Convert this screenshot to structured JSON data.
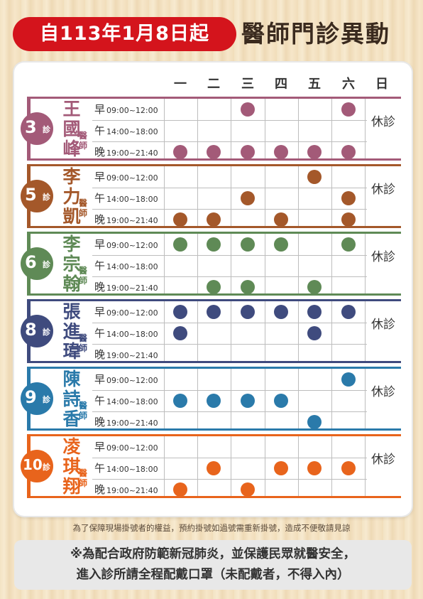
{
  "header": {
    "date_label": "自113年1月8日起",
    "title": "醫師門診異動"
  },
  "days": [
    "一",
    "二",
    "三",
    "四",
    "五",
    "六",
    "日"
  ],
  "slot_labels": {
    "morning": {
      "label": "早",
      "time": "09:00~12:00"
    },
    "afternoon": {
      "label": "午",
      "time": "14:00~18:00"
    },
    "evening": {
      "label": "晚",
      "time": "19:00~21:40"
    }
  },
  "doctor_title": "醫師",
  "room_suffix": "診",
  "rest_label": "休診",
  "doctors": [
    {
      "room": "3",
      "name": "王國峰",
      "color": "#a35a78",
      "schedule": {
        "morning": [
          0,
          0,
          1,
          0,
          0,
          1
        ],
        "afternoon": [
          0,
          0,
          0,
          0,
          0,
          0
        ],
        "evening": [
          1,
          1,
          1,
          1,
          1,
          1
        ]
      }
    },
    {
      "room": "5",
      "name": "李力凱",
      "color": "#a4582a",
      "schedule": {
        "morning": [
          0,
          0,
          0,
          0,
          1,
          0
        ],
        "afternoon": [
          0,
          0,
          1,
          0,
          0,
          1
        ],
        "evening": [
          1,
          1,
          0,
          1,
          0,
          1
        ]
      }
    },
    {
      "room": "6",
      "name": "李宗翰",
      "color": "#5f8a56",
      "schedule": {
        "morning": [
          1,
          1,
          1,
          1,
          0,
          1
        ],
        "afternoon": [
          0,
          0,
          0,
          0,
          0,
          0
        ],
        "evening": [
          0,
          1,
          1,
          0,
          1,
          0
        ]
      }
    },
    {
      "room": "8",
      "name": "張進瑋",
      "color": "#3f4b7e",
      "schedule": {
        "morning": [
          1,
          1,
          1,
          1,
          1,
          1
        ],
        "afternoon": [
          1,
          0,
          0,
          0,
          1,
          0
        ],
        "evening": [
          0,
          0,
          0,
          0,
          0,
          0
        ]
      }
    },
    {
      "room": "9",
      "name": "陳詩香",
      "color": "#2a7aaa",
      "schedule": {
        "morning": [
          0,
          0,
          0,
          0,
          0,
          1
        ],
        "afternoon": [
          1,
          1,
          1,
          1,
          0,
          0
        ],
        "evening": [
          0,
          0,
          0,
          0,
          1,
          0
        ]
      }
    },
    {
      "room": "10",
      "name": "凌琪翔",
      "color": "#e8641c",
      "schedule": {
        "morning": [
          0,
          0,
          0,
          0,
          0,
          0
        ],
        "afternoon": [
          0,
          1,
          0,
          1,
          1,
          1
        ],
        "evening": [
          1,
          0,
          1,
          0,
          0,
          0
        ]
      }
    }
  ],
  "notice": "為了保障現場掛號者的權益，預約掛號如過號需重新掛號，造成不便敬請見諒",
  "mask_notice": {
    "line1": "※為配合政府防範新冠肺炎，並保護民眾就醫安全，",
    "line2": "進入診所請全程配戴口罩（未配戴者，不得入內）"
  }
}
